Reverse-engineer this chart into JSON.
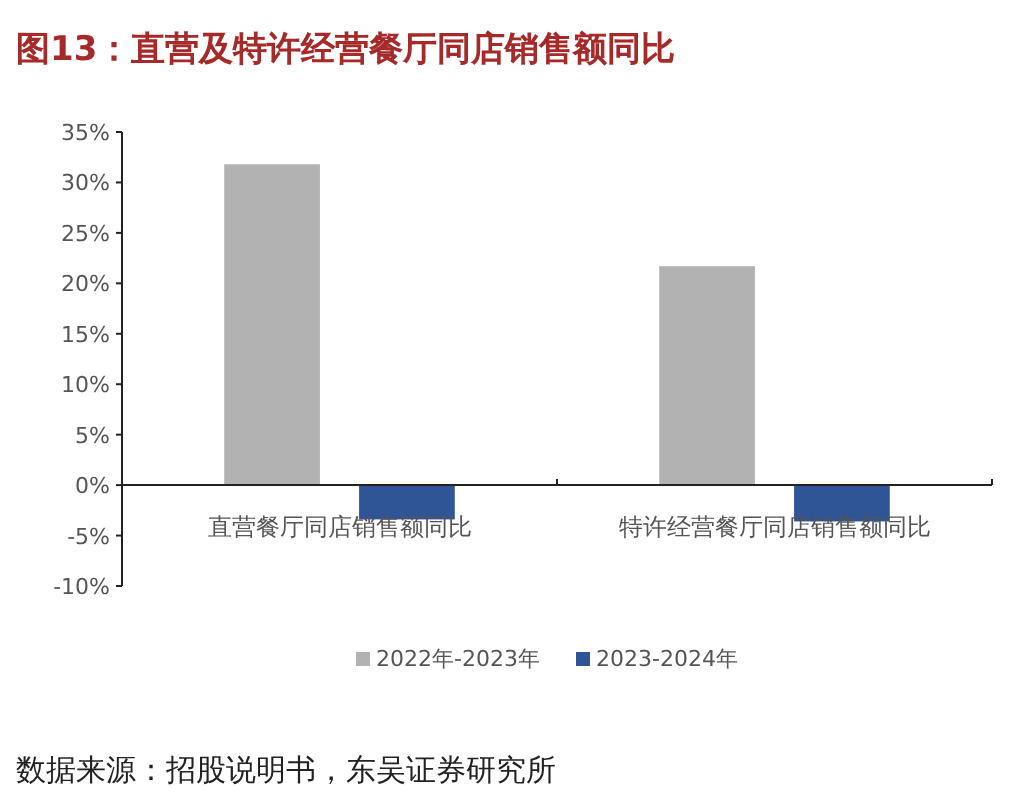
{
  "chart_data": {
    "type": "bar",
    "title": "图13：直营及特许经营餐厅同店销售额同比",
    "categories": [
      "直营餐厅同店销售额同比",
      "特许经营餐厅同店销售额同比"
    ],
    "series": [
      {
        "name": "2022年-2023年",
        "color": "#b2b2b2",
        "values": [
          31.8,
          21.7
        ]
      },
      {
        "name": "2023-2024年",
        "color": "#2f5597",
        "values": [
          -3.4,
          -3.6
        ]
      }
    ],
    "ylim": [
      -10,
      35
    ],
    "yticks": [
      {
        "value": -10,
        "label": "-10%"
      },
      {
        "value": -5,
        "label": "-5%"
      },
      {
        "value": 0,
        "label": "0%"
      },
      {
        "value": 5,
        "label": "5%"
      },
      {
        "value": 10,
        "label": "10%"
      },
      {
        "value": 15,
        "label": "15%"
      },
      {
        "value": 20,
        "label": "20%"
      },
      {
        "value": 25,
        "label": "25%"
      },
      {
        "value": 30,
        "label": "30%"
      },
      {
        "value": 35,
        "label": "35%"
      }
    ],
    "legend": "bottom",
    "annotations": [
      "数据来源：招股说明书，东吴证券研究所"
    ]
  }
}
